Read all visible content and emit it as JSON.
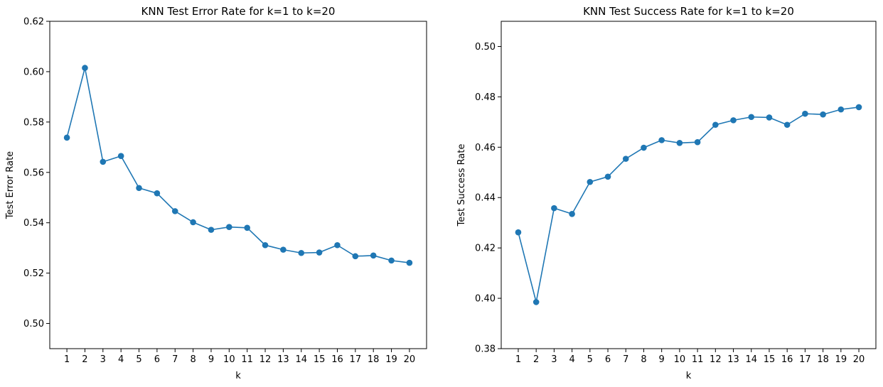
{
  "chart_data": [
    {
      "type": "line",
      "title": "KNN Test Error Rate for k=1 to k=20",
      "xlabel": "k",
      "ylabel": "Test Error Rate",
      "x": [
        1,
        2,
        3,
        4,
        5,
        6,
        7,
        8,
        9,
        10,
        11,
        12,
        13,
        14,
        15,
        16,
        17,
        18,
        19,
        20
      ],
      "xticks": [
        "1",
        "2",
        "3",
        "4",
        "5",
        "6",
        "7",
        "8",
        "9",
        "10",
        "11",
        "12",
        "13",
        "14",
        "15",
        "16",
        "17",
        "18",
        "19",
        "20"
      ],
      "ylim": [
        0.49,
        0.62
      ],
      "yticks": [
        "0.50",
        "0.52",
        "0.54",
        "0.56",
        "0.58",
        "0.60",
        "0.62"
      ],
      "grid": false,
      "marker": "circle",
      "series": [
        {
          "values": [
            0.5738,
            0.6015,
            0.5642,
            0.5665,
            0.5538,
            0.5517,
            0.5446,
            0.5402,
            0.5372,
            0.5383,
            0.538,
            0.5311,
            0.5293,
            0.528,
            0.5282,
            0.5311,
            0.5267,
            0.527,
            0.525,
            0.5241
          ],
          "color": "#1f77b4"
        }
      ]
    },
    {
      "type": "line",
      "title": "KNN Test Success Rate for k=1 to k=20",
      "xlabel": "k",
      "ylabel": "Test Success Rate",
      "x": [
        1,
        2,
        3,
        4,
        5,
        6,
        7,
        8,
        9,
        10,
        11,
        12,
        13,
        14,
        15,
        16,
        17,
        18,
        19,
        20
      ],
      "xticks": [
        "1",
        "2",
        "3",
        "4",
        "5",
        "6",
        "7",
        "8",
        "9",
        "10",
        "11",
        "12",
        "13",
        "14",
        "15",
        "16",
        "17",
        "18",
        "19",
        "20"
      ],
      "ylim": [
        0.38,
        0.51
      ],
      "yticks": [
        "0.38",
        "0.40",
        "0.42",
        "0.44",
        "0.46",
        "0.48",
        "0.50"
      ],
      "grid": false,
      "marker": "circle",
      "series": [
        {
          "values": [
            0.4262,
            0.3985,
            0.4358,
            0.4335,
            0.4462,
            0.4483,
            0.4554,
            0.4598,
            0.4628,
            0.4617,
            0.462,
            0.4689,
            0.4707,
            0.472,
            0.4718,
            0.4689,
            0.4733,
            0.473,
            0.475,
            0.4759
          ],
          "color": "#1f77b4"
        }
      ]
    }
  ]
}
